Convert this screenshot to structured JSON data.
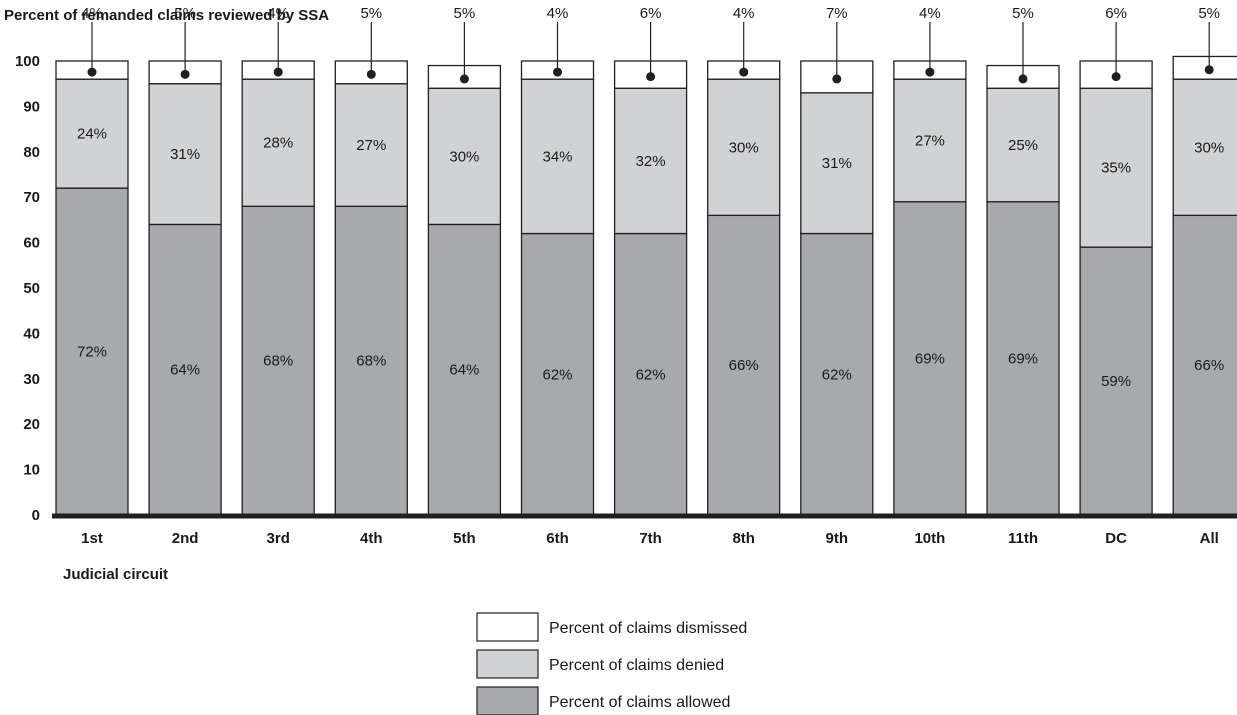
{
  "colors": {
    "dismissed": "#ffffff",
    "denied": "#d1d2d4",
    "allowed": "#a7a9ac",
    "stroke": "#231f20",
    "baseline": "#231f20"
  },
  "chart_data": {
    "type": "bar",
    "stacked": true,
    "title": "Percent of remanded claims reviewed by SSA",
    "xlabel": "Judicial circuit",
    "ylabel": "",
    "ylim": [
      0,
      100
    ],
    "yticks": [
      0,
      10,
      20,
      30,
      40,
      50,
      60,
      70,
      80,
      90,
      100
    ],
    "grid": false,
    "legend_position": "bottom",
    "categories": [
      "1st",
      "2nd",
      "3rd",
      "4th",
      "5th",
      "6th",
      "7th",
      "8th",
      "9th",
      "10th",
      "11th",
      "DC",
      "All"
    ],
    "series": [
      {
        "name": "Percent of claims allowed",
        "key": "allowed",
        "values": [
          72,
          64,
          68,
          68,
          64,
          62,
          62,
          66,
          62,
          69,
          69,
          59,
          66
        ],
        "labels": [
          "72%",
          "64%",
          "68%",
          "68%",
          "64%",
          "62%",
          "62%",
          "66%",
          "62%",
          "69%",
          "69%",
          "59%",
          "66%"
        ]
      },
      {
        "name": "Percent of claims denied",
        "key": "denied",
        "values": [
          24,
          31,
          28,
          27,
          30,
          34,
          32,
          30,
          31,
          27,
          25,
          35,
          30
        ],
        "labels": [
          "24%",
          "31%",
          "28%",
          "27%",
          "30%",
          "34%",
          "32%",
          "30%",
          "31%",
          "27%",
          "25%",
          "35%",
          "30%"
        ]
      },
      {
        "name": "Percent of claims dismissed",
        "key": "dismissed",
        "values": [
          4,
          5,
          4,
          5,
          5,
          4,
          6,
          4,
          7,
          4,
          5,
          6,
          5
        ],
        "labels": [
          "4%",
          "5%",
          "4%",
          "5%",
          "5%",
          "4%",
          "6%",
          "4%",
          "7%",
          "4%",
          "5%",
          "6%",
          "5%"
        ]
      }
    ],
    "legend": [
      {
        "label": "Percent of claims dismissed",
        "key": "dismissed"
      },
      {
        "label": "Percent of claims denied",
        "key": "denied"
      },
      {
        "label": "Percent of claims allowed",
        "key": "allowed"
      }
    ]
  }
}
